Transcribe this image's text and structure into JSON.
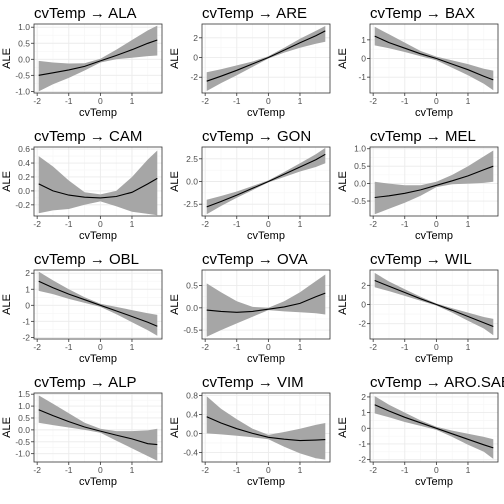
{
  "chart_data": [
    {
      "type": "line",
      "title": "cvTemp → ALA",
      "xlabel": "cvTemp",
      "ylabel": "ALE",
      "xlim": [
        -2.1,
        1.95
      ],
      "ylim": [
        -1.05,
        1.1
      ],
      "xticks": [
        -2,
        -1,
        0,
        1,
        2
      ],
      "yticks": [
        -1.0,
        -0.5,
        0.0,
        0.5,
        1.0
      ],
      "ytick_labels": [
        "-1.0",
        "-0.5",
        "0.0",
        "0.5",
        "1.0"
      ],
      "x": [
        -1.95,
        -1.5,
        -1.0,
        -0.5,
        0.0,
        0.5,
        1.0,
        1.5,
        1.8
      ],
      "y": [
        -0.5,
        -0.42,
        -0.33,
        -0.22,
        -0.05,
        0.12,
        0.3,
        0.5,
        0.6
      ],
      "lower": [
        -1.0,
        -0.78,
        -0.58,
        -0.35,
        -0.1,
        0.0,
        0.05,
        0.1,
        0.12
      ],
      "upper": [
        -0.05,
        -0.1,
        -0.13,
        -0.12,
        0.02,
        0.3,
        0.6,
        0.9,
        1.05
      ]
    },
    {
      "type": "line",
      "title": "cvTemp → ARE",
      "xlabel": "cvTemp",
      "ylabel": "ALE",
      "xlim": [
        -2.1,
        1.95
      ],
      "ylim": [
        -3.6,
        3.4
      ],
      "xticks": [
        -2,
        -1,
        0,
        1,
        2
      ],
      "yticks": [
        -2,
        0,
        2
      ],
      "ytick_labels": [
        "-2",
        "0",
        "2"
      ],
      "x": [
        -1.95,
        -1.5,
        -1.0,
        -0.5,
        0.0,
        0.5,
        1.0,
        1.5,
        1.8
      ],
      "y": [
        -2.4,
        -1.9,
        -1.3,
        -0.65,
        0.0,
        0.75,
        1.5,
        2.2,
        2.7
      ],
      "lower": [
        -3.4,
        -2.6,
        -1.8,
        -0.95,
        -0.1,
        0.5,
        1.0,
        1.4,
        1.6
      ],
      "upper": [
        -1.5,
        -1.2,
        -0.8,
        -0.4,
        0.12,
        1.0,
        1.9,
        2.7,
        3.2
      ]
    },
    {
      "type": "line",
      "title": "cvTemp → BAX",
      "xlabel": "cvTemp",
      "ylabel": "ALE",
      "xlim": [
        -2.1,
        1.95
      ],
      "ylim": [
        -1.85,
        1.85
      ],
      "xticks": [
        -2,
        -1,
        0,
        1,
        2
      ],
      "yticks": [
        -1,
        0,
        1
      ],
      "ytick_labels": [
        "-1",
        "0",
        "1"
      ],
      "x": [
        -1.95,
        -1.5,
        -1.0,
        -0.5,
        0.0,
        0.5,
        1.0,
        1.5,
        1.8
      ],
      "y": [
        1.2,
        0.85,
        0.55,
        0.25,
        0.0,
        -0.3,
        -0.6,
        -0.95,
        -1.15
      ],
      "lower": [
        0.7,
        0.55,
        0.35,
        0.12,
        -0.1,
        -0.5,
        -0.9,
        -1.35,
        -1.7
      ],
      "upper": [
        1.7,
        1.3,
        0.85,
        0.4,
        0.1,
        -0.1,
        -0.3,
        -0.55,
        -0.65
      ]
    },
    {
      "type": "line",
      "title": "cvTemp → CAM",
      "xlabel": "cvTemp",
      "ylabel": "ALE",
      "xlim": [
        -2.1,
        1.95
      ],
      "ylim": [
        -0.36,
        0.63
      ],
      "xticks": [
        -2,
        -1,
        0,
        1,
        2
      ],
      "yticks": [
        -0.2,
        0.0,
        0.2,
        0.4,
        0.6
      ],
      "ytick_labels": [
        "-0.2",
        "0.0",
        "0.2",
        "0.4",
        "0.6"
      ],
      "x": [
        -1.95,
        -1.5,
        -1.0,
        -0.5,
        0.0,
        0.5,
        1.0,
        1.5,
        1.8
      ],
      "y": [
        0.1,
        0.0,
        -0.06,
        -0.09,
        -0.1,
        -0.08,
        -0.02,
        0.1,
        0.18
      ],
      "lower": [
        -0.32,
        -0.28,
        -0.26,
        -0.2,
        -0.15,
        -0.22,
        -0.3,
        -0.33,
        -0.35
      ],
      "upper": [
        0.5,
        0.35,
        0.15,
        -0.02,
        -0.05,
        0.0,
        0.2,
        0.45,
        0.58
      ]
    },
    {
      "type": "line",
      "title": "cvTemp → GON",
      "xlabel": "cvTemp",
      "ylabel": "ALE",
      "xlim": [
        -2.1,
        1.95
      ],
      "ylim": [
        -3.8,
        3.8
      ],
      "xticks": [
        -2,
        -1,
        0,
        1,
        2
      ],
      "yticks": [
        -2.5,
        0.0,
        2.5
      ],
      "ytick_labels": [
        "-2.5",
        "0.0",
        "2.5"
      ],
      "x": [
        -1.95,
        -1.5,
        -1.0,
        -0.5,
        0.0,
        0.5,
        1.0,
        1.5,
        1.8
      ],
      "y": [
        -2.8,
        -2.2,
        -1.5,
        -0.75,
        0.0,
        0.8,
        1.6,
        2.4,
        3.0
      ],
      "lower": [
        -3.6,
        -2.7,
        -1.8,
        -0.95,
        -0.1,
        0.5,
        1.1,
        1.6,
        2.0
      ],
      "upper": [
        -2.0,
        -1.6,
        -1.1,
        -0.5,
        0.12,
        1.05,
        2.0,
        3.0,
        3.7
      ]
    },
    {
      "type": "line",
      "title": "cvTemp → MEL",
      "xlabel": "cvTemp",
      "ylabel": "ALE",
      "xlim": [
        -2.1,
        1.95
      ],
      "ylim": [
        -0.93,
        1.05
      ],
      "xticks": [
        -2,
        -1,
        0,
        1,
        2
      ],
      "yticks": [
        -0.5,
        0.0,
        0.5,
        1.0
      ],
      "ytick_labels": [
        "-0.5",
        "0.0",
        "0.5",
        "1.0"
      ],
      "x": [
        -1.95,
        -1.5,
        -1.0,
        -0.5,
        0.0,
        0.5,
        1.0,
        1.5,
        1.8
      ],
      "y": [
        -0.4,
        -0.35,
        -0.28,
        -0.18,
        -0.05,
        0.08,
        0.22,
        0.4,
        0.5
      ],
      "lower": [
        -0.88,
        -0.72,
        -0.55,
        -0.35,
        -0.1,
        -0.02,
        0.0,
        0.02,
        0.05
      ],
      "upper": [
        0.05,
        0.0,
        -0.05,
        -0.05,
        0.05,
        0.25,
        0.5,
        0.78,
        0.95
      ]
    },
    {
      "type": "line",
      "title": "cvTemp → OBL",
      "xlabel": "cvTemp",
      "ylabel": "ALE",
      "xlim": [
        -2.1,
        1.95
      ],
      "ylim": [
        -2.1,
        2.2
      ],
      "xticks": [
        -2,
        -1,
        0,
        1,
        2
      ],
      "yticks": [
        -2,
        -1,
        0,
        1,
        2
      ],
      "ytick_labels": [
        "-2",
        "-1",
        "0",
        "1",
        "2"
      ],
      "x": [
        -1.95,
        -1.5,
        -1.0,
        -0.5,
        0.0,
        0.5,
        1.0,
        1.5,
        1.8
      ],
      "y": [
        1.5,
        1.1,
        0.7,
        0.35,
        0.0,
        -0.35,
        -0.7,
        -1.05,
        -1.3
      ],
      "lower": [
        0.9,
        0.7,
        0.4,
        0.15,
        -0.1,
        -0.55,
        -1.05,
        -1.55,
        -1.9
      ],
      "upper": [
        2.1,
        1.55,
        1.0,
        0.5,
        0.1,
        -0.1,
        -0.3,
        -0.5,
        -0.6
      ]
    },
    {
      "type": "line",
      "title": "cvTemp → OVA",
      "xlabel": "cvTemp",
      "ylabel": "ALE",
      "xlim": [
        -2.1,
        1.95
      ],
      "ylim": [
        -0.7,
        0.85
      ],
      "xticks": [
        -2,
        -1,
        0,
        1,
        2
      ],
      "yticks": [
        -0.5,
        0.0,
        0.5
      ],
      "ytick_labels": [
        "-0.5",
        "0.0",
        "0.5"
      ],
      "x": [
        -1.95,
        -1.5,
        -1.0,
        -0.5,
        0.0,
        0.5,
        1.0,
        1.5,
        1.8
      ],
      "y": [
        -0.05,
        -0.08,
        -0.1,
        -0.08,
        -0.03,
        0.02,
        0.1,
        0.25,
        0.33
      ],
      "lower": [
        -0.65,
        -0.5,
        -0.35,
        -0.2,
        -0.05,
        -0.08,
        -0.1,
        -0.12,
        -0.15
      ],
      "upper": [
        0.55,
        0.35,
        0.15,
        0.02,
        0.0,
        0.15,
        0.35,
        0.6,
        0.75
      ]
    },
    {
      "type": "line",
      "title": "cvTemp → WIL",
      "xlabel": "cvTemp",
      "ylabel": "ALE",
      "xlim": [
        -2.1,
        1.95
      ],
      "ylim": [
        -3.6,
        3.6
      ],
      "xticks": [
        -2,
        -1,
        0,
        1,
        2
      ],
      "yticks": [
        -2,
        0,
        2
      ],
      "ytick_labels": [
        "-2",
        "0",
        "2"
      ],
      "x": [
        -1.95,
        -1.5,
        -1.0,
        -0.5,
        0.0,
        0.5,
        1.0,
        1.5,
        1.8
      ],
      "y": [
        2.5,
        1.9,
        1.25,
        0.6,
        0.0,
        -0.6,
        -1.25,
        -1.9,
        -2.3
      ],
      "lower": [
        1.8,
        1.4,
        0.9,
        0.4,
        -0.12,
        -0.85,
        -1.7,
        -2.5,
        -3.2
      ],
      "upper": [
        3.3,
        2.4,
        1.6,
        0.8,
        0.1,
        -0.4,
        -0.85,
        -1.3,
        -1.5
      ]
    },
    {
      "type": "line",
      "title": "cvTemp → ALP",
      "xlabel": "cvTemp",
      "ylabel": "ALE",
      "xlim": [
        -2.1,
        1.95
      ],
      "ylim": [
        -1.35,
        1.55
      ],
      "xticks": [
        -2,
        -1,
        0,
        1,
        2
      ],
      "yticks": [
        -1.0,
        -0.5,
        0.0,
        0.5,
        1.0,
        1.5
      ],
      "ytick_labels": [
        "-1.0",
        "-0.5",
        "0.0",
        "0.5",
        "1.0",
        "1.5"
      ],
      "x": [
        -1.95,
        -1.5,
        -1.0,
        -0.5,
        0.0,
        0.5,
        1.0,
        1.5,
        1.8
      ],
      "y": [
        0.85,
        0.6,
        0.35,
        0.12,
        -0.05,
        -0.22,
        -0.38,
        -0.58,
        -0.62
      ],
      "lower": [
        0.3,
        0.2,
        0.1,
        0.0,
        -0.12,
        -0.45,
        -0.78,
        -1.1,
        -1.3
      ],
      "upper": [
        1.45,
        1.1,
        0.7,
        0.3,
        0.05,
        -0.05,
        -0.05,
        -0.02,
        0.05
      ]
    },
    {
      "type": "line",
      "title": "cvTemp → VIM",
      "xlabel": "cvTemp",
      "ylabel": "ALE",
      "xlim": [
        -2.1,
        1.95
      ],
      "ylim": [
        -0.6,
        0.85
      ],
      "xticks": [
        -2,
        -1,
        0,
        1,
        2
      ],
      "yticks": [
        -0.4,
        0.0,
        0.4,
        0.8
      ],
      "ytick_labels": [
        "-0.4",
        "0.0",
        "0.4",
        "0.8"
      ],
      "x": [
        -1.95,
        -1.5,
        -1.0,
        -0.5,
        0.0,
        0.5,
        1.0,
        1.5,
        1.8
      ],
      "y": [
        0.35,
        0.22,
        0.1,
        0.0,
        -0.08,
        -0.12,
        -0.15,
        -0.14,
        -0.13
      ],
      "lower": [
        0.0,
        -0.02,
        -0.05,
        -0.08,
        -0.12,
        -0.28,
        -0.42,
        -0.52,
        -0.55
      ],
      "upper": [
        0.78,
        0.52,
        0.3,
        0.1,
        -0.03,
        0.03,
        0.1,
        0.18,
        0.22
      ]
    },
    {
      "type": "line",
      "title": "cvTemp → ARO.SAB",
      "xlabel": "cvTemp",
      "ylabel": "ALE",
      "xlim": [
        -2.1,
        1.95
      ],
      "ylim": [
        -2.15,
        2.25
      ],
      "xticks": [
        -2,
        -1,
        0,
        1,
        2
      ],
      "yticks": [
        -2,
        -1,
        0,
        1,
        2
      ],
      "ytick_labels": [
        "-2",
        "-1",
        "0",
        "1",
        "2"
      ],
      "x": [
        -1.95,
        -1.5,
        -1.0,
        -0.5,
        0.0,
        0.5,
        1.0,
        1.5,
        1.8
      ],
      "y": [
        1.5,
        1.1,
        0.7,
        0.35,
        0.0,
        -0.35,
        -0.7,
        -1.05,
        -1.25
      ],
      "lower": [
        0.95,
        0.7,
        0.4,
        0.15,
        -0.1,
        -0.55,
        -1.05,
        -1.5,
        -1.95
      ],
      "upper": [
        2.05,
        1.5,
        1.0,
        0.5,
        0.1,
        -0.15,
        -0.35,
        -0.55,
        -0.7
      ]
    }
  ],
  "colors": {
    "band": "#a6a6a6",
    "line": "#000000",
    "grid_major": "#ebebeb",
    "grid_minor": "#f5f5f5",
    "frame": "#333333"
  }
}
